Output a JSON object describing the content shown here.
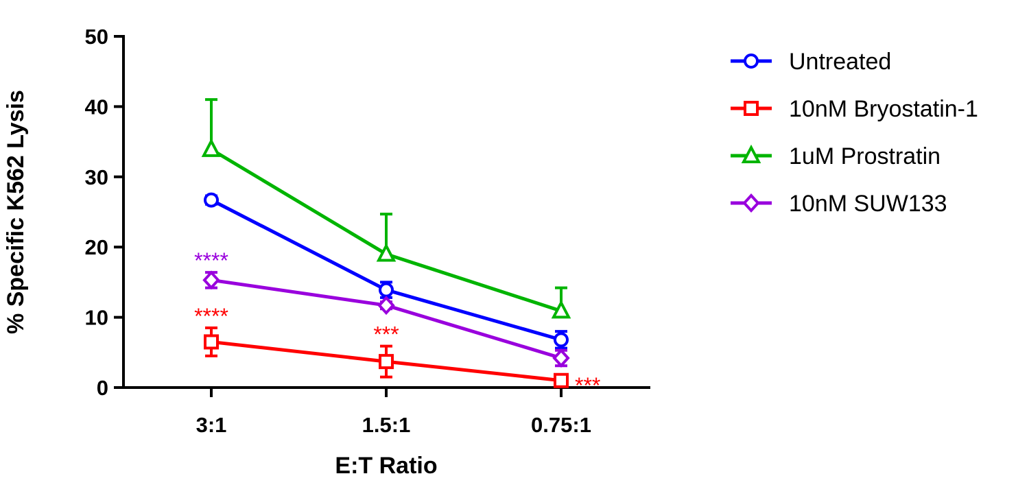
{
  "chart_data": {
    "type": "line",
    "title": "",
    "xlabel": "E:T Ratio",
    "ylabel": "% Specific K562 Lysis",
    "categories": [
      "3:1",
      "1.5:1",
      "0.75:1"
    ],
    "ylim": [
      0,
      50
    ],
    "yticks": [
      "0",
      "10",
      "20",
      "30",
      "40",
      "50"
    ],
    "grid": false,
    "legend_position": "right",
    "series": [
      {
        "name": "Untreated",
        "color": "#0000ff",
        "marker": "circle",
        "values": [
          26.7,
          13.9,
          6.8
        ],
        "error": [
          0.6,
          1.1,
          1.2
        ],
        "error_side": "both"
      },
      {
        "name": "10nM Bryostatin-1",
        "color": "#ff0000",
        "marker": "square",
        "values": [
          6.5,
          3.7,
          1.0
        ],
        "error": [
          2.0,
          2.2,
          0.3
        ],
        "error_side": "both"
      },
      {
        "name": "1uM Prostratin",
        "color": "#00b400",
        "marker": "triangle",
        "values": [
          33.9,
          19.0,
          10.9
        ],
        "error": [
          7.1,
          5.7,
          3.3
        ],
        "error_side": "up"
      },
      {
        "name": "10nM SUW133",
        "color": "#9900dd",
        "marker": "diamond",
        "values": [
          15.3,
          11.7,
          4.2
        ],
        "error": [
          1.1,
          0.5,
          1.1
        ],
        "error_side": "both"
      }
    ],
    "annotations": [
      {
        "text": "****",
        "category": "3:1",
        "series": "10nM SUW133",
        "color": "#9900dd",
        "placement": "above"
      },
      {
        "text": "****",
        "category": "3:1",
        "series": "10nM Bryostatin-1",
        "color": "#ff0000",
        "placement": "above"
      },
      {
        "text": "***",
        "category": "1.5:1",
        "series": "10nM Bryostatin-1",
        "color": "#ff0000",
        "placement": "above"
      },
      {
        "text": "***",
        "category": "0.75:1",
        "series": "10nM Bryostatin-1",
        "color": "#ff0000",
        "placement": "right"
      }
    ]
  }
}
